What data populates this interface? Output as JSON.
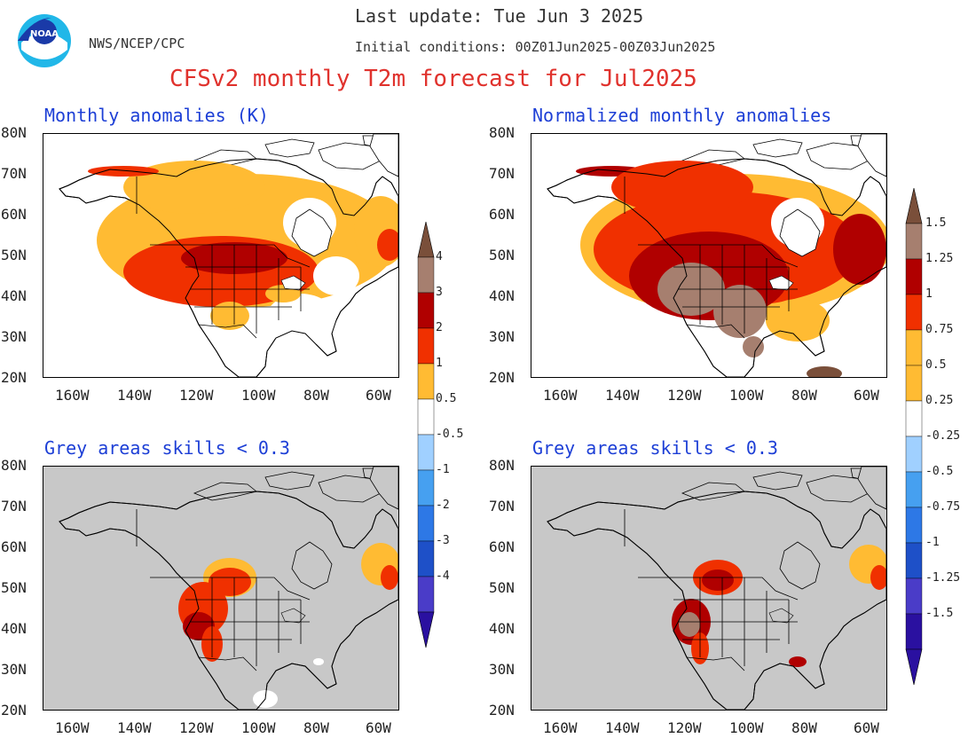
{
  "header": {
    "agency": "NWS/NCEP/CPC",
    "last_update": "Last update: Tue Jun 3 2025",
    "initial_conditions": "Initial conditions: 00Z01Jun2025-00Z03Jun2025",
    "title": "CFSv2 monthly T2m forecast for Jul2025"
  },
  "logo": {
    "icon": "noaa-logo-icon",
    "text": "NOAA"
  },
  "panels": [
    {
      "id": "anom",
      "title": "Monthly anomalies (K)"
    },
    {
      "id": "norm",
      "title": "Normalized monthly anomalies"
    },
    {
      "id": "anom-skill",
      "title": "Grey areas skills < 0.3"
    },
    {
      "id": "norm-skill",
      "title": "Grey areas skills < 0.3"
    }
  ],
  "axes": {
    "lat_labels": [
      "80N",
      "70N",
      "60N",
      "50N",
      "40N",
      "30N",
      "20N"
    ],
    "lon_labels": [
      "160W",
      "140W",
      "120W",
      "100W",
      "80W",
      "60W"
    ]
  },
  "colorbars": {
    "anom": {
      "labels": [
        "4",
        "3",
        "2",
        "1",
        "0.5",
        "-0.5",
        "-1",
        "-2",
        "-3",
        "-4"
      ]
    },
    "norm": {
      "labels": [
        "1.5",
        "1.25",
        "1",
        "0.75",
        "0.5",
        "0.25",
        "-0.25",
        "-0.5",
        "-0.75",
        "-1",
        "-1.25",
        "-1.5"
      ]
    }
  },
  "colors": {
    "brown": "#7a4f3a",
    "light_brown": "#a67f6f",
    "dark_red": "#b00000",
    "red": "#f03000",
    "orange": "#ffbb33",
    "light_blue": "#a0d0ff",
    "blue1": "#46a0f0",
    "blue2": "#2d78e6",
    "blue3": "#1e50c8",
    "purple1": "#4a3cc8",
    "purple2": "#2a10a0",
    "land": "#ffffff",
    "skill_grey": "#c8c8c8",
    "title_red": "#e0322d",
    "title_blue": "#1d3fd6"
  }
}
